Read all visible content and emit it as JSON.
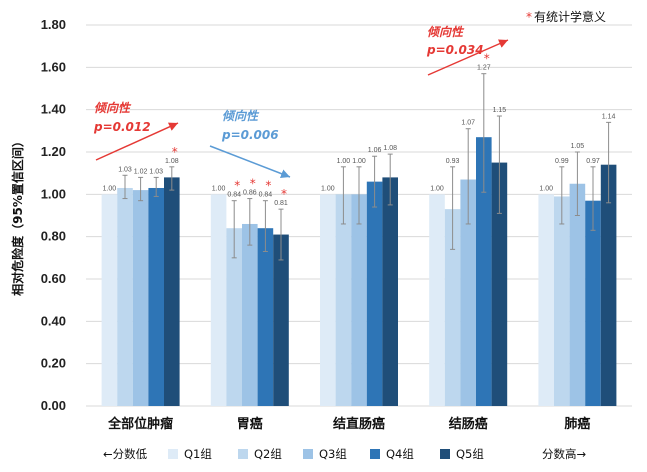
{
  "chart_data": {
    "type": "bar",
    "ylabel": "相对危险度（95%置信区间）",
    "ylim": [
      0,
      1.8
    ],
    "yticks": [
      "0.00",
      "0.20",
      "0.40",
      "0.60",
      "0.80",
      "1.00",
      "1.20",
      "1.40",
      "1.60",
      "1.80"
    ],
    "grid": true,
    "categories": [
      "全部位肿瘤",
      "胃癌",
      "结直肠癌",
      "结肠癌",
      "肺癌"
    ],
    "series": [
      {
        "name": "Q1组",
        "color": "#deebf7",
        "values": [
          1.0,
          1.0,
          1.0,
          1.0,
          1.0
        ],
        "lower": [
          1.0,
          1.0,
          1.0,
          1.0,
          1.0
        ],
        "upper": [
          1.0,
          1.0,
          1.0,
          1.0,
          1.0
        ]
      },
      {
        "name": "Q2组",
        "color": "#bdd7ee",
        "values": [
          1.03,
          0.84,
          1.0,
          0.93,
          0.99
        ],
        "lower": [
          0.98,
          0.7,
          0.86,
          0.74,
          0.86
        ],
        "upper": [
          1.09,
          0.97,
          1.13,
          1.13,
          1.13
        ]
      },
      {
        "name": "Q3组",
        "color": "#9dc3e6",
        "values": [
          1.02,
          0.86,
          1.0,
          1.07,
          1.05
        ],
        "lower": [
          0.97,
          0.76,
          0.86,
          0.86,
          0.9
        ],
        "upper": [
          1.08,
          0.98,
          1.13,
          1.31,
          1.2
        ]
      },
      {
        "name": "Q4组",
        "color": "#2e75b6",
        "values": [
          1.03,
          0.84,
          1.06,
          1.27,
          0.97
        ],
        "lower": [
          0.99,
          0.73,
          0.94,
          1.01,
          0.83
        ],
        "upper": [
          1.08,
          0.97,
          1.18,
          1.57,
          1.13
        ]
      },
      {
        "name": "Q5组",
        "color": "#1f4e79",
        "values": [
          1.08,
          0.81,
          1.08,
          1.15,
          1.14
        ],
        "lower": [
          1.02,
          0.69,
          0.95,
          0.91,
          0.96
        ],
        "upper": [
          1.13,
          0.93,
          1.19,
          1.37,
          1.34
        ]
      }
    ],
    "data_labels": [
      [
        "1.00",
        "1.00",
        "1.00",
        "1.00",
        "1.00"
      ],
      [
        "1.03",
        "0.84",
        "1.00",
        "0.93",
        "0.99"
      ],
      [
        "1.02",
        "0.86",
        "1.00",
        "1.07",
        "1.05"
      ],
      [
        "1.03",
        "0.84",
        "1.06",
        "1.27",
        "0.97"
      ],
      [
        "1.08",
        "0.81",
        "1.08",
        "1.15",
        "1.14"
      ]
    ],
    "significant": [
      [
        0,
        4
      ],
      [
        1,
        1
      ],
      [
        1,
        2
      ],
      [
        1,
        3
      ],
      [
        1,
        4
      ],
      [
        3,
        3
      ]
    ],
    "significance_marker": "*",
    "significance_note": "有统计学意义",
    "trends": [
      {
        "label": "倾向性",
        "p": "p=0.012",
        "color": "#e53935",
        "direction": "up"
      },
      {
        "label": "倾向性",
        "p": "p=0.006",
        "color": "#5b9bd5",
        "direction": "down"
      },
      {
        "label": "倾向性",
        "p": "p=0.034",
        "color": "#e53935",
        "direction": "up"
      }
    ],
    "legend": {
      "position": "bottom",
      "left_text": "←分数低",
      "right_text": "分数高→",
      "items": [
        "Q1组",
        "Q2组",
        "Q3组",
        "Q4组",
        "Q5组"
      ]
    }
  }
}
